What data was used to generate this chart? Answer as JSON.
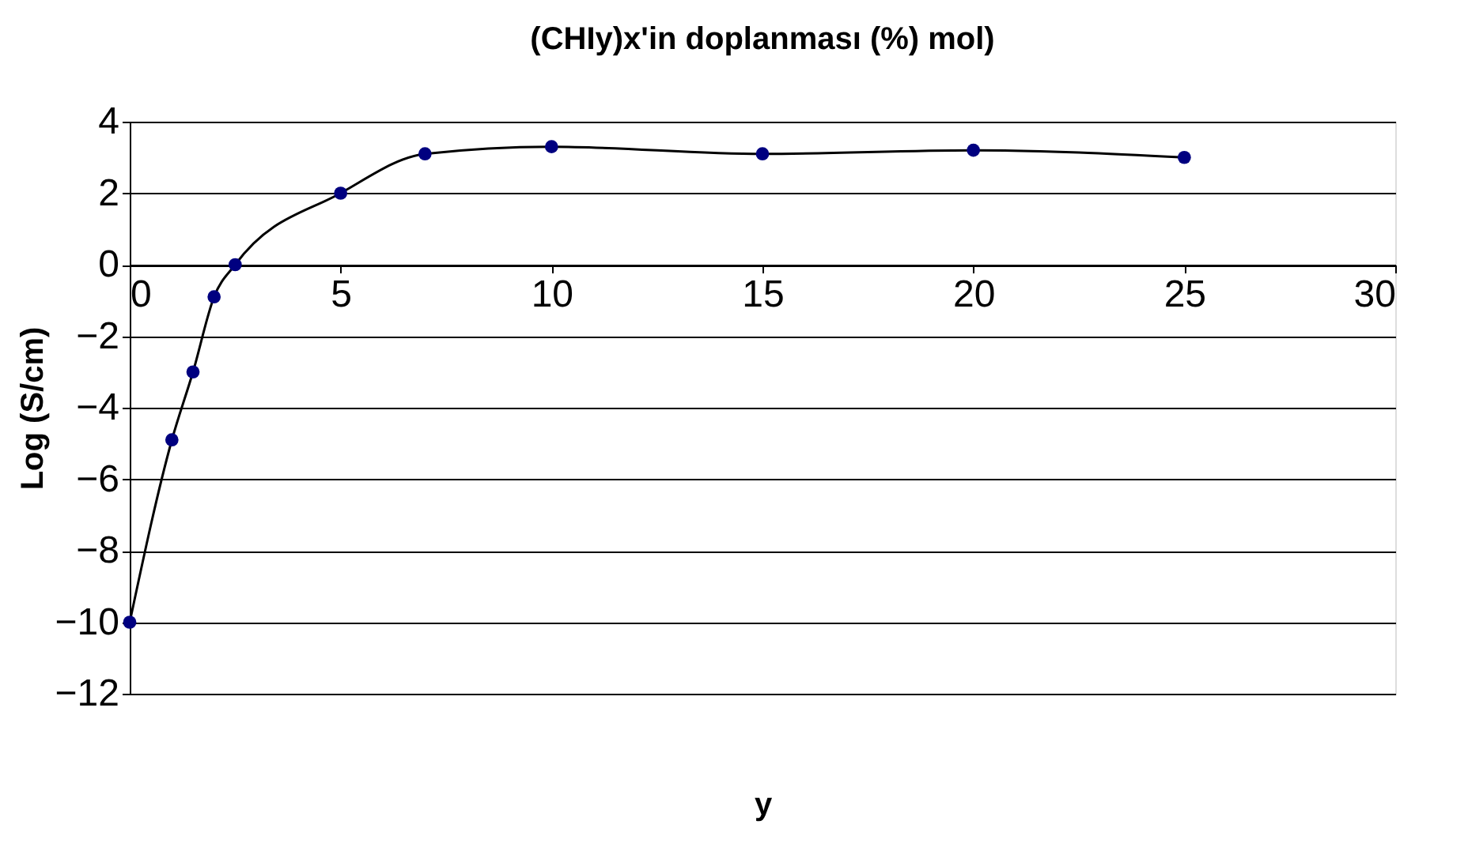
{
  "chart_data": {
    "type": "line",
    "title": "(CHIy)x'in doplanması (%) mol)",
    "xlabel": "y",
    "ylabel": "Log (S/cm)",
    "x": [
      0,
      1,
      1.5,
      2,
      2.5,
      5,
      7,
      10,
      15,
      20,
      25
    ],
    "series": [
      {
        "color": "#000080",
        "values": [
          -10,
          -4.9,
          -3,
          -0.9,
          0,
          2,
          3.1,
          3.3,
          3.1,
          3.2,
          3
        ]
      }
    ],
    "xlim": [
      0,
      30
    ],
    "xticks": [
      0,
      5,
      10,
      15,
      20,
      25,
      30
    ],
    "ylim": [
      -12,
      4
    ],
    "yticks": [
      -12,
      -10,
      -8,
      -6,
      -4,
      -2,
      0,
      2,
      4
    ],
    "grid": "y",
    "marker": "circle",
    "line_style": "solid"
  }
}
